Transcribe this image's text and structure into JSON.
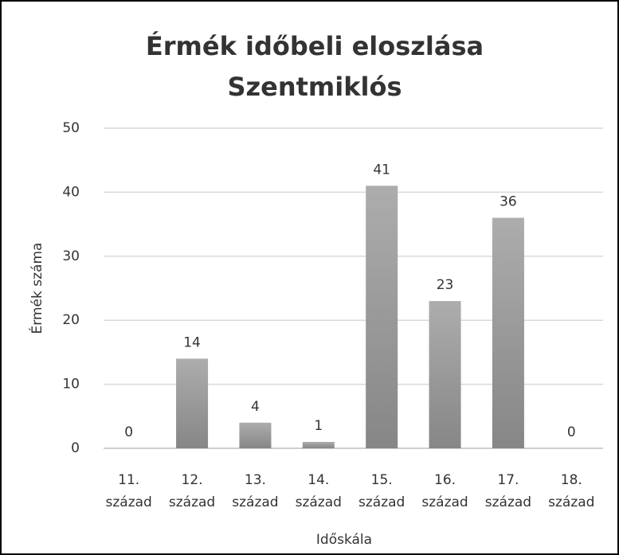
{
  "chart_data": {
    "type": "bar",
    "title": [
      "Érmék időbeli eloszlása",
      "Szentmiklós"
    ],
    "x_label": "Időskála",
    "y_label": "Érmék száma",
    "categories": [
      "11. század",
      "12. század",
      "13. század",
      "14. század",
      "15. század",
      "16. század",
      "17. század",
      "18. század"
    ],
    "values": [
      0,
      14,
      4,
      1,
      41,
      23,
      36,
      0
    ],
    "color": "#9e9e9e",
    "ylim": [
      0,
      50
    ],
    "yticks": [
      0,
      10,
      20,
      30,
      40,
      50
    ],
    "grid": true
  }
}
